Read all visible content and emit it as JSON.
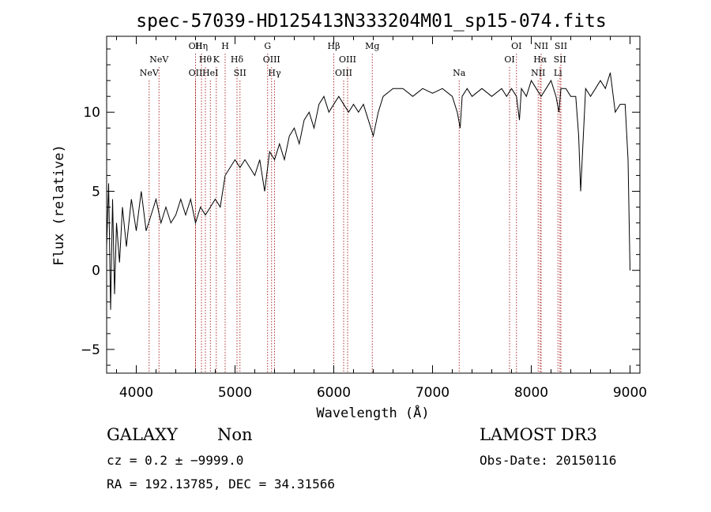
{
  "chart_data": {
    "type": "line",
    "title": "spec-57039-HD125413N333204M01_sp15-074.fits",
    "xlabel": "Wavelength (Å)",
    "ylabel": "Flux (relative)",
    "xlim": [
      3700,
      9100
    ],
    "ylim": [
      -6.5,
      14.8
    ],
    "xticks": [
      4000,
      5000,
      6000,
      7000,
      8000,
      9000
    ],
    "yticks": [
      -5,
      0,
      5,
      10
    ],
    "xtick_labels": [
      "4000",
      "5000",
      "6000",
      "7000",
      "8000",
      "9000"
    ],
    "ytick_labels": [
      "−5",
      "0",
      "5",
      "10"
    ],
    "grid": false,
    "series": [
      {
        "name": "spectrum",
        "x": [
          3700,
          3720,
          3740,
          3760,
          3780,
          3800,
          3830,
          3860,
          3900,
          3950,
          4000,
          4050,
          4100,
          4150,
          4200,
          4250,
          4300,
          4350,
          4400,
          4450,
          4500,
          4550,
          4600,
          4650,
          4700,
          4750,
          4800,
          4850,
          4900,
          4950,
          5000,
          5050,
          5100,
          5150,
          5200,
          5250,
          5300,
          5320,
          5350,
          5400,
          5450,
          5500,
          5550,
          5600,
          5650,
          5700,
          5750,
          5800,
          5850,
          5900,
          5950,
          6000,
          6050,
          6100,
          6150,
          6200,
          6250,
          6300,
          6350,
          6400,
          6450,
          6500,
          6600,
          6700,
          6800,
          6900,
          7000,
          7100,
          7200,
          7250,
          7280,
          7300,
          7350,
          7400,
          7500,
          7600,
          7700,
          7750,
          7800,
          7850,
          7880,
          7900,
          7950,
          8000,
          8050,
          8100,
          8150,
          8200,
          8250,
          8280,
          8300,
          8350,
          8400,
          8450,
          8480,
          8500,
          8550,
          8600,
          8650,
          8700,
          8750,
          8800,
          8850,
          8900,
          8950,
          8980,
          9000
        ],
        "y": [
          1.5,
          5.5,
          -2.5,
          4.5,
          -1.5,
          3.0,
          0.5,
          4.0,
          1.5,
          4.5,
          2.5,
          5.0,
          2.5,
          3.5,
          4.5,
          3.0,
          4.0,
          3.0,
          3.5,
          4.5,
          3.5,
          4.5,
          3.0,
          4.0,
          3.5,
          4.0,
          4.5,
          4.0,
          6.0,
          6.5,
          7.0,
          6.5,
          7.0,
          6.5,
          6.0,
          7.0,
          5.0,
          6.0,
          7.5,
          7.0,
          8.0,
          7.0,
          8.5,
          9.0,
          8.0,
          9.5,
          10.0,
          9.0,
          10.5,
          11.0,
          10.0,
          10.5,
          11.0,
          10.5,
          10.0,
          10.5,
          10.0,
          10.5,
          9.5,
          8.5,
          10.0,
          11.0,
          11.5,
          11.5,
          11.0,
          11.5,
          11.2,
          11.5,
          11.0,
          10.0,
          9.0,
          11.0,
          11.5,
          11.0,
          11.5,
          11.0,
          11.5,
          11.0,
          11.5,
          11.0,
          9.5,
          11.5,
          11.0,
          12.0,
          11.5,
          11.0,
          11.5,
          12.0,
          11.0,
          10.0,
          11.5,
          11.5,
          11.0,
          11.0,
          8.5,
          5.0,
          11.5,
          11.0,
          11.5,
          12.0,
          11.5,
          12.5,
          10.0,
          10.5,
          10.5,
          7.0,
          0.0
        ]
      }
    ],
    "emission_lines": [
      {
        "label": "NeV",
        "wavelength": 4230,
        "row": 1
      },
      {
        "label": "NeV",
        "wavelength": 4130,
        "row": 2
      },
      {
        "label": "OII",
        "wavelength": 4600,
        "row": 0
      },
      {
        "label": "OII",
        "wavelength": 4600,
        "row": 2
      },
      {
        "label": "Hη",
        "wavelength": 4660,
        "row": 0
      },
      {
        "label": "Hθ",
        "wavelength": 4700,
        "row": 1
      },
      {
        "label": "HeI",
        "wavelength": 4750,
        "row": 2
      },
      {
        "label": "K",
        "wavelength": 4810,
        "row": 1
      },
      {
        "label": "H",
        "wavelength": 4900,
        "row": 0
      },
      {
        "label": "Hδ",
        "wavelength": 5020,
        "row": 1
      },
      {
        "label": "SII",
        "wavelength": 5050,
        "row": 2
      },
      {
        "label": "G",
        "wavelength": 5330,
        "row": 0
      },
      {
        "label": "OIII",
        "wavelength": 5370,
        "row": 1
      },
      {
        "label": "Hγ",
        "wavelength": 5400,
        "row": 2
      },
      {
        "label": "Hβ",
        "wavelength": 6000,
        "row": 0
      },
      {
        "label": "OIII",
        "wavelength": 6140,
        "row": 1
      },
      {
        "label": "OIII",
        "wavelength": 6100,
        "row": 2
      },
      {
        "label": "Mg",
        "wavelength": 6390,
        "row": 0
      },
      {
        "label": "Na",
        "wavelength": 7270,
        "row": 2
      },
      {
        "label": "OI",
        "wavelength": 7850,
        "row": 0
      },
      {
        "label": "OI",
        "wavelength": 7780,
        "row": 1
      },
      {
        "label": "NII",
        "wavelength": 8100,
        "row": 0
      },
      {
        "label": "Hα",
        "wavelength": 8090,
        "row": 1
      },
      {
        "label": "NII",
        "wavelength": 8070,
        "row": 2
      },
      {
        "label": "SII",
        "wavelength": 8300,
        "row": 0
      },
      {
        "label": "SII",
        "wavelength": 8290,
        "row": 1
      },
      {
        "label": "Li",
        "wavelength": 8270,
        "row": 2
      }
    ]
  },
  "info": {
    "class": "GALAXY",
    "subclass": "Non",
    "cz_line": "cz = 0.2 ± −9999.0",
    "coords_line": "RA = 192.13785, DEC =  34.31566",
    "survey": "LAMOST DR3",
    "obs_date": "Obs-Date: 20150116"
  },
  "colors": {
    "line": "#000000",
    "marker": "#b03030",
    "axes": "#000000"
  }
}
